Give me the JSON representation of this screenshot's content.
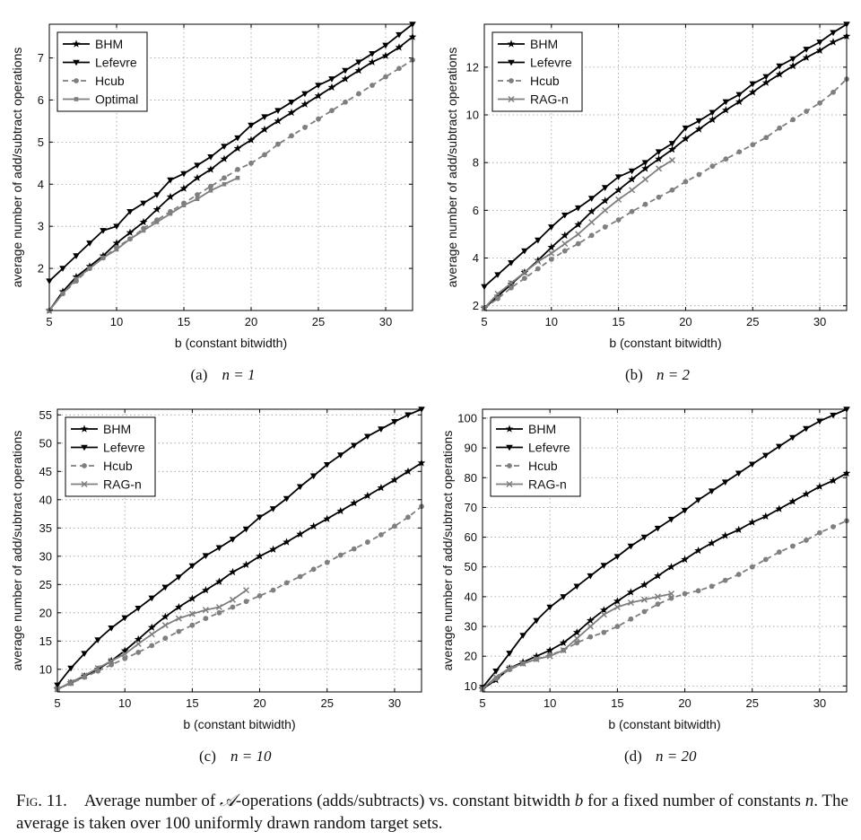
{
  "caption": {
    "fig_label": "Fig. 11.",
    "part1": "Average number of ",
    "symbol": "𝒜",
    "part2": "-operations (adds/subtracts) vs. constant bitwidth ",
    "var_b": "b",
    "part3": " for a fixed number of constants ",
    "var_n": "n",
    "part4": ". The average is taken over 100 uniformly drawn random target sets."
  },
  "colors": {
    "BHM": "#000000",
    "Lefevre": "#000000",
    "Hcub": "#7f7f7f",
    "Optimal": "#7f7f7f",
    "RAG-n": "#7f7f7f"
  },
  "chart_data": [
    {
      "type": "line",
      "subcaption": "(a)",
      "subcaption_eq": "n = 1",
      "xlabel": "b (constant bitwidth)",
      "ylabel": "average number of add/subtract operations",
      "xlim": [
        5,
        32
      ],
      "ylim": [
        1,
        7.8
      ],
      "xticks": [
        5,
        10,
        15,
        20,
        25,
        30
      ],
      "yticks": [
        2,
        3,
        4,
        5,
        6,
        7
      ],
      "grid": true,
      "legend_position": "top-left",
      "series": [
        {
          "name": "BHM",
          "x": [
            5,
            6,
            7,
            8,
            9,
            10,
            11,
            12,
            13,
            14,
            15,
            16,
            17,
            18,
            19,
            20,
            21,
            22,
            23,
            24,
            25,
            26,
            27,
            28,
            29,
            30,
            31,
            32
          ],
          "values": [
            1.0,
            1.45,
            1.8,
            2.05,
            2.3,
            2.6,
            2.85,
            3.1,
            3.4,
            3.7,
            3.9,
            4.15,
            4.35,
            4.6,
            4.85,
            5.05,
            5.3,
            5.5,
            5.7,
            5.9,
            6.1,
            6.3,
            6.5,
            6.7,
            6.9,
            7.05,
            7.25,
            7.5
          ]
        },
        {
          "name": "Lefevre",
          "x": [
            5,
            6,
            7,
            8,
            9,
            10,
            11,
            12,
            13,
            14,
            15,
            16,
            17,
            18,
            19,
            20,
            21,
            22,
            23,
            24,
            25,
            26,
            27,
            28,
            29,
            30,
            31,
            32
          ],
          "values": [
            1.7,
            2.0,
            2.3,
            2.6,
            2.9,
            3.0,
            3.35,
            3.55,
            3.75,
            4.1,
            4.25,
            4.45,
            4.65,
            4.9,
            5.1,
            5.4,
            5.6,
            5.75,
            5.95,
            6.15,
            6.35,
            6.5,
            6.7,
            6.9,
            7.1,
            7.3,
            7.55,
            7.8
          ]
        },
        {
          "name": "Hcub",
          "x": [
            5,
            6,
            7,
            8,
            9,
            10,
            11,
            12,
            13,
            14,
            15,
            16,
            17,
            18,
            19,
            20,
            21,
            22,
            23,
            24,
            25,
            26,
            27,
            28,
            29,
            30,
            31,
            32
          ],
          "values": [
            1.0,
            1.4,
            1.7,
            2.0,
            2.25,
            2.5,
            2.7,
            2.95,
            3.15,
            3.35,
            3.55,
            3.75,
            3.95,
            4.15,
            4.35,
            4.5,
            4.7,
            4.95,
            5.15,
            5.35,
            5.55,
            5.75,
            5.95,
            6.15,
            6.35,
            6.55,
            6.75,
            6.95
          ]
        },
        {
          "name": "Optimal",
          "x": [
            5,
            6,
            7,
            8,
            9,
            10,
            11,
            12,
            13,
            14,
            15,
            16,
            17,
            18,
            19
          ],
          "values": [
            1.0,
            1.4,
            1.75,
            2.0,
            2.25,
            2.45,
            2.7,
            2.9,
            3.1,
            3.3,
            3.5,
            3.65,
            3.85,
            4.0,
            4.15
          ]
        }
      ]
    },
    {
      "type": "line",
      "subcaption": "(b)",
      "subcaption_eq": "n = 2",
      "xlabel": "b (constant bitwidth)",
      "ylabel": "average number of add/subtract operations",
      "xlim": [
        5,
        32
      ],
      "ylim": [
        1.8,
        13.8
      ],
      "xticks": [
        5,
        10,
        15,
        20,
        25,
        30
      ],
      "yticks": [
        2,
        4,
        6,
        8,
        10,
        12
      ],
      "grid": true,
      "legend_position": "top-left",
      "series": [
        {
          "name": "BHM",
          "x": [
            5,
            6,
            7,
            8,
            9,
            10,
            11,
            12,
            13,
            14,
            15,
            16,
            17,
            18,
            19,
            20,
            21,
            22,
            23,
            24,
            25,
            26,
            27,
            28,
            29,
            30,
            31,
            32
          ],
          "values": [
            1.9,
            2.4,
            2.9,
            3.4,
            3.9,
            4.45,
            4.95,
            5.4,
            5.95,
            6.4,
            6.85,
            7.3,
            7.75,
            8.15,
            8.55,
            9.0,
            9.4,
            9.8,
            10.2,
            10.55,
            10.95,
            11.35,
            11.7,
            12.05,
            12.4,
            12.7,
            13.05,
            13.3
          ]
        },
        {
          "name": "Lefevre",
          "x": [
            5,
            6,
            7,
            8,
            9,
            10,
            11,
            12,
            13,
            14,
            15,
            16,
            17,
            18,
            19,
            20,
            21,
            22,
            23,
            24,
            25,
            26,
            27,
            28,
            29,
            30,
            31,
            32
          ],
          "values": [
            2.8,
            3.3,
            3.8,
            4.3,
            4.75,
            5.3,
            5.8,
            6.1,
            6.5,
            6.95,
            7.4,
            7.65,
            8.0,
            8.45,
            8.8,
            9.45,
            9.75,
            10.1,
            10.55,
            10.85,
            11.3,
            11.6,
            12.05,
            12.35,
            12.75,
            13.05,
            13.45,
            13.8
          ]
        },
        {
          "name": "Hcub",
          "x": [
            5,
            6,
            7,
            8,
            9,
            10,
            11,
            12,
            13,
            14,
            15,
            16,
            17,
            18,
            19,
            20,
            21,
            22,
            23,
            24,
            25,
            26,
            27,
            28,
            29,
            30,
            31,
            32
          ],
          "values": [
            1.9,
            2.3,
            2.75,
            3.15,
            3.55,
            3.95,
            4.3,
            4.6,
            4.95,
            5.3,
            5.6,
            5.95,
            6.25,
            6.55,
            6.85,
            7.2,
            7.5,
            7.85,
            8.15,
            8.45,
            8.75,
            9.05,
            9.45,
            9.8,
            10.15,
            10.5,
            10.95,
            11.5
          ]
        },
        {
          "name": "RAG-n",
          "x": [
            5,
            6,
            7,
            8,
            9,
            10,
            11,
            12,
            13,
            14,
            15,
            16,
            17,
            18,
            19
          ],
          "values": [
            1.9,
            2.5,
            2.95,
            3.4,
            3.85,
            4.2,
            4.6,
            5.0,
            5.5,
            6.0,
            6.45,
            6.85,
            7.3,
            7.75,
            8.1
          ]
        }
      ]
    },
    {
      "type": "line",
      "subcaption": "(c)",
      "subcaption_eq": "n = 10",
      "xlabel": "b (constant bitwidth)",
      "ylabel": "average number of add/subtract operations",
      "xlim": [
        5,
        32
      ],
      "ylim": [
        6,
        56
      ],
      "xticks": [
        5,
        10,
        15,
        20,
        25,
        30
      ],
      "yticks": [
        10,
        15,
        20,
        25,
        30,
        35,
        40,
        45,
        50,
        55
      ],
      "grid": true,
      "legend_position": "top-left",
      "series": [
        {
          "name": "BHM",
          "x": [
            5,
            6,
            7,
            8,
            9,
            10,
            11,
            12,
            13,
            14,
            15,
            16,
            17,
            18,
            19,
            20,
            21,
            22,
            23,
            24,
            25,
            26,
            27,
            28,
            29,
            30,
            31,
            32
          ],
          "values": [
            6.5,
            7.6,
            8.8,
            10.0,
            11.5,
            13.3,
            15.3,
            17.4,
            19.3,
            21.0,
            22.5,
            24.0,
            25.5,
            27.2,
            28.5,
            30.0,
            31.2,
            32.5,
            33.9,
            35.3,
            36.6,
            38.0,
            39.4,
            40.7,
            42.1,
            43.5,
            45.0,
            46.5
          ]
        },
        {
          "name": "Lefevre",
          "x": [
            5,
            6,
            7,
            8,
            9,
            10,
            11,
            12,
            13,
            14,
            15,
            16,
            17,
            18,
            19,
            20,
            21,
            22,
            23,
            24,
            25,
            26,
            27,
            28,
            29,
            30,
            31,
            32
          ],
          "values": [
            7.2,
            10.2,
            12.8,
            15.2,
            17.3,
            19.1,
            20.8,
            22.6,
            24.5,
            26.3,
            28.3,
            30.1,
            31.5,
            33.0,
            34.8,
            36.9,
            38.4,
            40.2,
            42.3,
            44.2,
            46.2,
            47.9,
            49.6,
            51.2,
            52.5,
            53.8,
            55.0,
            56.0
          ]
        },
        {
          "name": "Hcub",
          "x": [
            5,
            6,
            7,
            8,
            9,
            10,
            11,
            12,
            13,
            14,
            15,
            16,
            17,
            18,
            19,
            20,
            21,
            22,
            23,
            24,
            25,
            26,
            27,
            28,
            29,
            30,
            31,
            32
          ],
          "values": [
            6.5,
            7.5,
            8.6,
            9.7,
            10.8,
            11.9,
            13.0,
            14.2,
            15.5,
            16.7,
            17.8,
            19.0,
            20.0,
            21.0,
            22.0,
            23.0,
            24.0,
            25.3,
            26.4,
            27.7,
            28.9,
            30.2,
            31.3,
            32.5,
            33.8,
            35.3,
            36.9,
            38.8
          ]
        },
        {
          "name": "RAG-n",
          "x": [
            5,
            6,
            7,
            8,
            9,
            10,
            11,
            12,
            13,
            14,
            15,
            16,
            17,
            18,
            19
          ],
          "values": [
            6.5,
            7.7,
            8.9,
            10.2,
            11.5,
            12.7,
            14.5,
            16.2,
            17.8,
            19.0,
            19.8,
            20.5,
            21.0,
            22.3,
            24.0
          ]
        }
      ]
    },
    {
      "type": "line",
      "subcaption": "(d)",
      "subcaption_eq": "n = 20",
      "xlabel": "b (constant bitwidth)",
      "ylabel": "average number of add/subtract operations",
      "xlim": [
        5,
        32
      ],
      "ylim": [
        8,
        103
      ],
      "xticks": [
        5,
        10,
        15,
        20,
        25,
        30
      ],
      "yticks": [
        10,
        20,
        30,
        40,
        50,
        60,
        70,
        80,
        90,
        100
      ],
      "grid": true,
      "legend_position": "top-left",
      "series": [
        {
          "name": "BHM",
          "x": [
            5,
            6,
            7,
            8,
            9,
            10,
            11,
            12,
            13,
            14,
            15,
            16,
            17,
            18,
            19,
            20,
            21,
            22,
            23,
            24,
            25,
            26,
            27,
            28,
            29,
            30,
            31,
            32
          ],
          "values": [
            9.0,
            12.0,
            16.0,
            18.0,
            20.0,
            22.0,
            24.5,
            28.0,
            32.0,
            35.5,
            38.5,
            41.5,
            44.0,
            47.0,
            50.0,
            52.5,
            55.5,
            58.0,
            60.5,
            62.5,
            65.0,
            67.0,
            69.5,
            72.0,
            74.5,
            77.0,
            79.0,
            81.5
          ]
        },
        {
          "name": "Lefevre",
          "x": [
            5,
            6,
            7,
            8,
            9,
            10,
            11,
            12,
            13,
            14,
            15,
            16,
            17,
            18,
            19,
            20,
            21,
            22,
            23,
            24,
            25,
            26,
            27,
            28,
            29,
            30,
            31,
            32
          ],
          "values": [
            9.5,
            15.0,
            21.0,
            27.0,
            32.0,
            36.5,
            40.0,
            43.5,
            47.0,
            50.5,
            53.5,
            57.0,
            60.0,
            63.0,
            66.0,
            69.0,
            72.5,
            75.5,
            78.5,
            81.5,
            84.5,
            87.5,
            90.5,
            93.5,
            96.5,
            99.0,
            101.0,
            103.0
          ]
        },
        {
          "name": "Hcub",
          "x": [
            5,
            6,
            7,
            8,
            9,
            10,
            11,
            12,
            13,
            14,
            15,
            16,
            17,
            18,
            19,
            20,
            21,
            22,
            23,
            24,
            25,
            26,
            27,
            28,
            29,
            30,
            31,
            32
          ],
          "values": [
            9.0,
            12.5,
            15.5,
            17.5,
            19.0,
            20.5,
            22.0,
            24.5,
            26.5,
            28.0,
            30.0,
            32.5,
            35.0,
            37.5,
            39.5,
            41.0,
            42.0,
            43.5,
            45.5,
            47.5,
            50.0,
            52.5,
            55.0,
            57.0,
            59.0,
            61.5,
            63.5,
            65.5
          ]
        },
        {
          "name": "RAG-n",
          "x": [
            5,
            6,
            7,
            8,
            9,
            10,
            11,
            12,
            13,
            14,
            15,
            16,
            17,
            18,
            19
          ],
          "values": [
            9.0,
            13.0,
            16.0,
            17.5,
            19.0,
            20.0,
            22.0,
            26.0,
            30.0,
            34.0,
            36.5,
            38.0,
            39.0,
            40.0,
            41.0
          ]
        }
      ]
    }
  ]
}
